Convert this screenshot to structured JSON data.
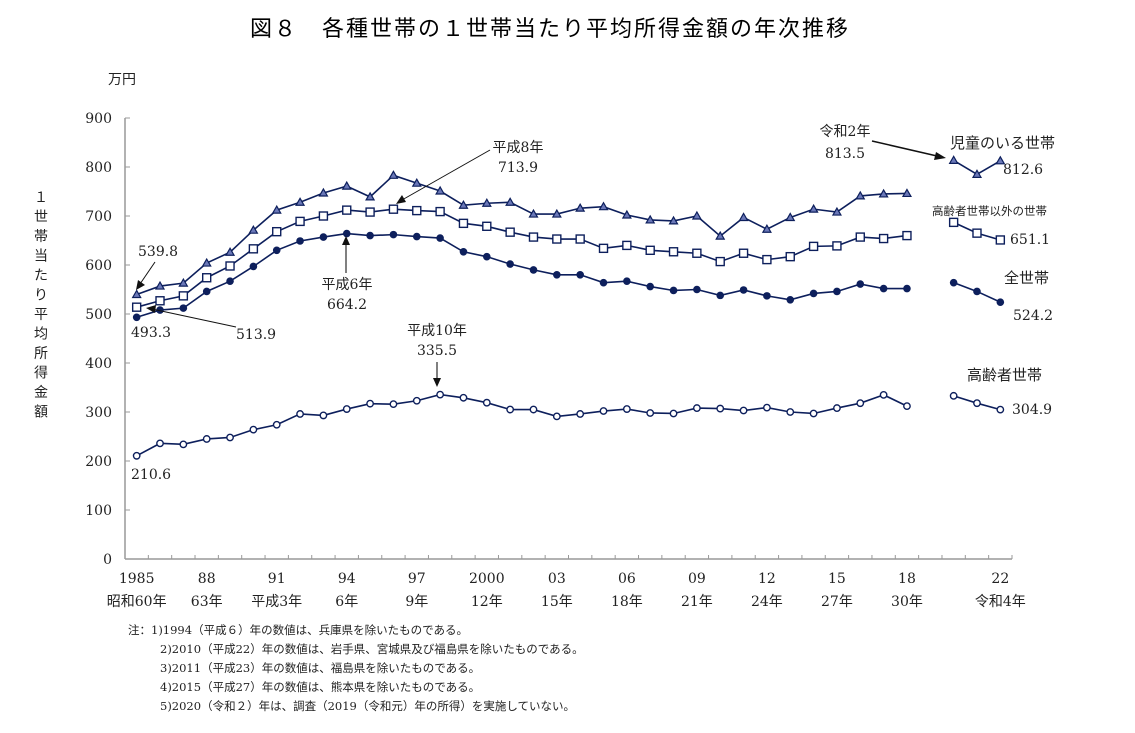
{
  "chart_data": {
    "type": "line",
    "title": "図８　各種世帯の１世帯当たり平均所得金額の年次推移",
    "ylabel": "１世帯当たり平均所得金額",
    "yunit": "万円",
    "xlabel": "",
    "ylim": [
      0,
      900
    ],
    "yticks": [
      0,
      100,
      200,
      300,
      400,
      500,
      600,
      700,
      800,
      900
    ],
    "x": [
      1985,
      1986,
      1987,
      1988,
      1989,
      1990,
      1991,
      1992,
      1993,
      1994,
      1995,
      1996,
      1997,
      1998,
      1999,
      2000,
      2001,
      2002,
      2003,
      2004,
      2005,
      2006,
      2007,
      2008,
      2009,
      2010,
      2011,
      2012,
      2013,
      2014,
      2015,
      2016,
      2017,
      2018,
      2019,
      2020,
      2021,
      2022
    ],
    "xticks": [
      {
        "year": 1985,
        "top": "1985",
        "bottom": "昭和60年"
      },
      {
        "year": 1988,
        "top": "88",
        "bottom": "63年"
      },
      {
        "year": 1991,
        "top": "91",
        "bottom": "平成3年"
      },
      {
        "year": 1994,
        "top": "94",
        "bottom": "6年"
      },
      {
        "year": 1997,
        "top": "97",
        "bottom": "9年"
      },
      {
        "year": 2000,
        "top": "2000",
        "bottom": "12年"
      },
      {
        "year": 2003,
        "top": "03",
        "bottom": "15年"
      },
      {
        "year": 2006,
        "top": "06",
        "bottom": "18年"
      },
      {
        "year": 2009,
        "top": "09",
        "bottom": "21年"
      },
      {
        "year": 2012,
        "top": "12",
        "bottom": "24年"
      },
      {
        "year": 2015,
        "top": "15",
        "bottom": "27年"
      },
      {
        "year": 2018,
        "top": "18",
        "bottom": "30年"
      },
      {
        "year": 2022,
        "top": "22",
        "bottom": "令和4年"
      }
    ],
    "grid": false,
    "series": [
      {
        "name": "児童のいる世帯",
        "marker": "triangle",
        "values": [
          539.8,
          557,
          563,
          604,
          626,
          671,
          712,
          728,
          747,
          761,
          739,
          783,
          767,
          751,
          722,
          726,
          728,
          704,
          704,
          716,
          719,
          702,
          692,
          690,
          700,
          659,
          697,
          673,
          697,
          714,
          708,
          741,
          745,
          746,
          null,
          813.5,
          785,
          812.6
        ]
      },
      {
        "name": "高齢者世帯以外の世帯",
        "marker": "square",
        "values": [
          513.9,
          527,
          537,
          574,
          598,
          633,
          668,
          689,
          700,
          712,
          708,
          713.9,
          711,
          709,
          685,
          679,
          667,
          657,
          653,
          653,
          634,
          640,
          630,
          627,
          624,
          607,
          624,
          611,
          617,
          638,
          639,
          657,
          654,
          660,
          null,
          687,
          665,
          651.1
        ]
      },
      {
        "name": "全世帯",
        "marker": "circle",
        "values": [
          493.3,
          508,
          512,
          546,
          567,
          597,
          630,
          649,
          657,
          664.2,
          660,
          662,
          658,
          655,
          627,
          617,
          602,
          590,
          580,
          580,
          564,
          567,
          556,
          548,
          550,
          538,
          549,
          537,
          529,
          542,
          546,
          561,
          552,
          552,
          null,
          564,
          546,
          524.2
        ]
      },
      {
        "name": "高齢者世帯",
        "marker": "circle-open",
        "values": [
          210.6,
          236,
          234,
          245,
          248,
          264,
          274,
          296,
          293,
          306,
          317,
          316,
          323,
          335.5,
          329,
          319,
          305,
          305,
          291,
          296,
          302,
          306,
          298,
          297,
          308,
          307,
          303,
          309,
          300,
          297,
          308,
          318,
          335,
          312,
          null,
          333,
          318,
          304.9
        ]
      }
    ],
    "series_labels": {
      "children": {
        "name": "児童のいる世帯",
        "last": "812.6"
      },
      "nonelderly": {
        "name": "高齢者世帯以外の世帯",
        "last": "651.1"
      },
      "all": {
        "name": "全世帯",
        "last": "524.2"
      },
      "elderly": {
        "name": "高齢者世帯",
        "last": "304.9"
      }
    },
    "annotations": [
      {
        "id": "c1985",
        "text": "539.8"
      },
      {
        "id": "o1985",
        "text": "513.9"
      },
      {
        "id": "a1985",
        "text": "493.3"
      },
      {
        "id": "e1985",
        "text": "210.6"
      },
      {
        "id": "a1994_era",
        "text": "平成6年"
      },
      {
        "id": "a1994_val",
        "text": "664.2"
      },
      {
        "id": "o1996_era",
        "text": "平成8年"
      },
      {
        "id": "o1996_val",
        "text": "713.9"
      },
      {
        "id": "e1998_era",
        "text": "平成10年"
      },
      {
        "id": "e1998_val",
        "text": "335.5"
      },
      {
        "id": "c2020_era",
        "text": "令和2年"
      },
      {
        "id": "c2020_val",
        "text": "813.5"
      }
    ]
  },
  "notes": [
    "注：1)1994（平成６）年の数値は、兵庫県を除いたものである。",
    "2)2010（平成22）年の数値は、岩手県、宮城県及び福島県を除いたものである。",
    "3)2011（平成23）年の数値は、福島県を除いたものである。",
    "4)2015（平成27）年の数値は、熊本県を除いたものである。",
    "5)2020（令和２）年は、調査（2019（令和元）年の所得）を実施していない。"
  ],
  "colors": {
    "series": "#0d1f5c",
    "axis": "#999999",
    "text": "#222222"
  }
}
